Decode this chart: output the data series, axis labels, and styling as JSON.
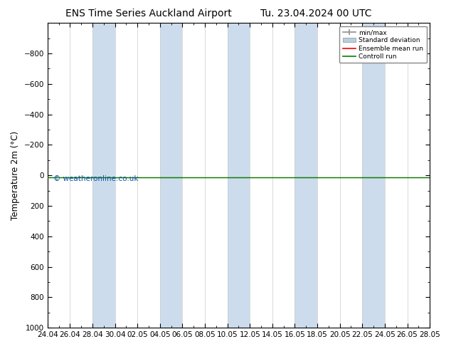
{
  "title_left": "ENS Time Series Auckland Airport",
  "title_right": "Tu. 23.04.2024 00 UTC",
  "ylabel": "Temperature 2m (°C)",
  "ylim_top": -1000,
  "ylim_bottom": 1000,
  "yticks": [
    -800,
    -600,
    -400,
    -200,
    0,
    200,
    400,
    600,
    800,
    1000
  ],
  "x_tick_labels": [
    "24.04",
    "26.04",
    "28.04",
    "30.04",
    "02.05",
    "04.05",
    "06.05",
    "08.05",
    "10.05",
    "12.05",
    "14.05",
    "16.05",
    "18.05",
    "20.05",
    "22.05",
    "24.05",
    "26.05",
    "28.05"
  ],
  "x_tick_days": [
    0,
    2,
    4,
    6,
    8,
    10,
    12,
    14,
    16,
    18,
    20,
    22,
    24,
    26,
    28,
    30,
    32,
    34
  ],
  "total_days": 34,
  "control_run_y": 13.0,
  "ensemble_mean_y": 13.0,
  "shaded_band_color": "#ccdcec",
  "shaded_bands": [
    [
      4,
      6
    ],
    [
      10,
      12
    ],
    [
      16,
      18
    ],
    [
      22,
      24
    ],
    [
      28,
      30
    ],
    [
      34,
      36
    ]
  ],
  "background_color": "#ffffff",
  "plot_bg_color": "#ffffff",
  "control_run_color": "#008000",
  "ensemble_mean_color": "#ff0000",
  "minmax_color": "#909090",
  "std_color": "#b8cfe0",
  "watermark": "© weatheronline.co.uk",
  "watermark_color": "#1155aa",
  "legend_items": [
    "min/max",
    "Standard deviation",
    "Ensemble mean run",
    "Controll run"
  ],
  "legend_colors": [
    "#909090",
    "#b8cfe0",
    "#ff0000",
    "#008000"
  ],
  "title_fontsize": 10,
  "tick_fontsize": 7.5,
  "ylabel_fontsize": 8.5
}
